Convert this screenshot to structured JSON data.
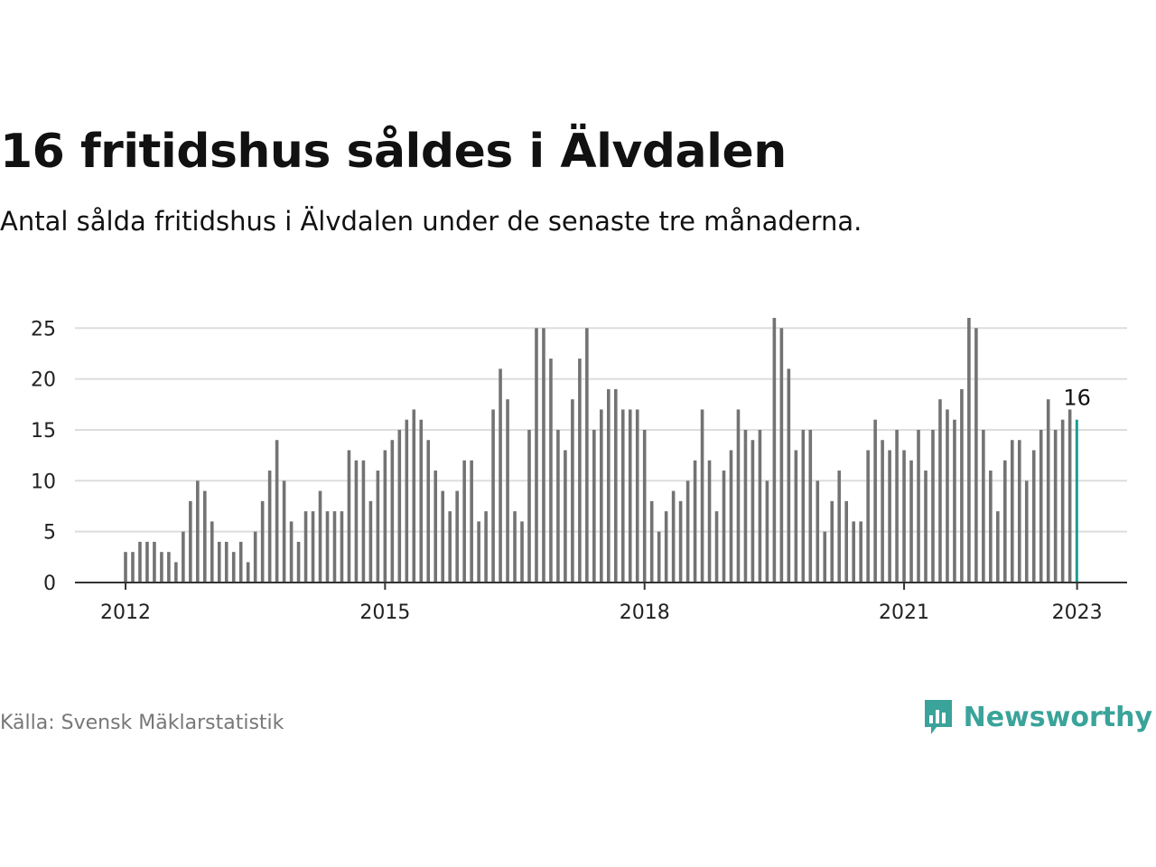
{
  "header": {
    "title": "16 fritidshus såldes i Älvdalen",
    "subtitle": "Antal sålda fritidshus i Älvdalen under de senaste tre månaderna."
  },
  "footer": {
    "source": "Källa: Svensk Mäklarstatistik",
    "brand": "Newsworthy",
    "brand_icon": "newsworthy-bar-chart-icon"
  },
  "colors": {
    "bar": "#737373",
    "highlight": "#1a9e96",
    "grid": "#dddddd",
    "axis": "#333333",
    "brand": "#3aa39a"
  },
  "chart_data": {
    "type": "bar",
    "x_start": "2012-01",
    "x_interval": "month",
    "values": [
      3,
      3,
      4,
      4,
      4,
      3,
      3,
      2,
      5,
      8,
      10,
      9,
      6,
      4,
      4,
      3,
      4,
      2,
      5,
      8,
      11,
      14,
      10,
      6,
      4,
      7,
      7,
      9,
      7,
      7,
      7,
      13,
      12,
      12,
      8,
      11,
      13,
      14,
      15,
      16,
      17,
      16,
      14,
      11,
      9,
      7,
      9,
      12,
      12,
      6,
      7,
      17,
      21,
      18,
      7,
      6,
      15,
      25,
      25,
      22,
      15,
      13,
      18,
      22,
      25,
      15,
      17,
      19,
      19,
      17,
      17,
      17,
      15,
      8,
      5,
      7,
      9,
      8,
      10,
      12,
      17,
      12,
      7,
      11,
      13,
      17,
      15,
      14,
      15,
      10,
      26,
      25,
      21,
      13,
      15,
      15,
      10,
      5,
      8,
      11,
      8,
      6,
      6,
      13,
      16,
      14,
      13,
      15,
      13,
      12,
      15,
      11,
      15,
      18,
      17,
      16,
      19,
      26,
      25,
      15,
      11,
      7,
      12,
      14,
      14,
      10,
      13,
      15,
      18,
      15,
      16,
      17,
      16
    ],
    "xticks": [
      "2012",
      "2015",
      "2018",
      "2021",
      "2023"
    ],
    "xtick_months": [
      "2012-01",
      "2015-01",
      "2018-01",
      "2021-01",
      "2023-01"
    ],
    "yticks": [
      0,
      5,
      10,
      15,
      20,
      25
    ],
    "ylim": [
      0,
      26
    ],
    "grid": true,
    "highlight_last": true,
    "last_label": "16"
  }
}
